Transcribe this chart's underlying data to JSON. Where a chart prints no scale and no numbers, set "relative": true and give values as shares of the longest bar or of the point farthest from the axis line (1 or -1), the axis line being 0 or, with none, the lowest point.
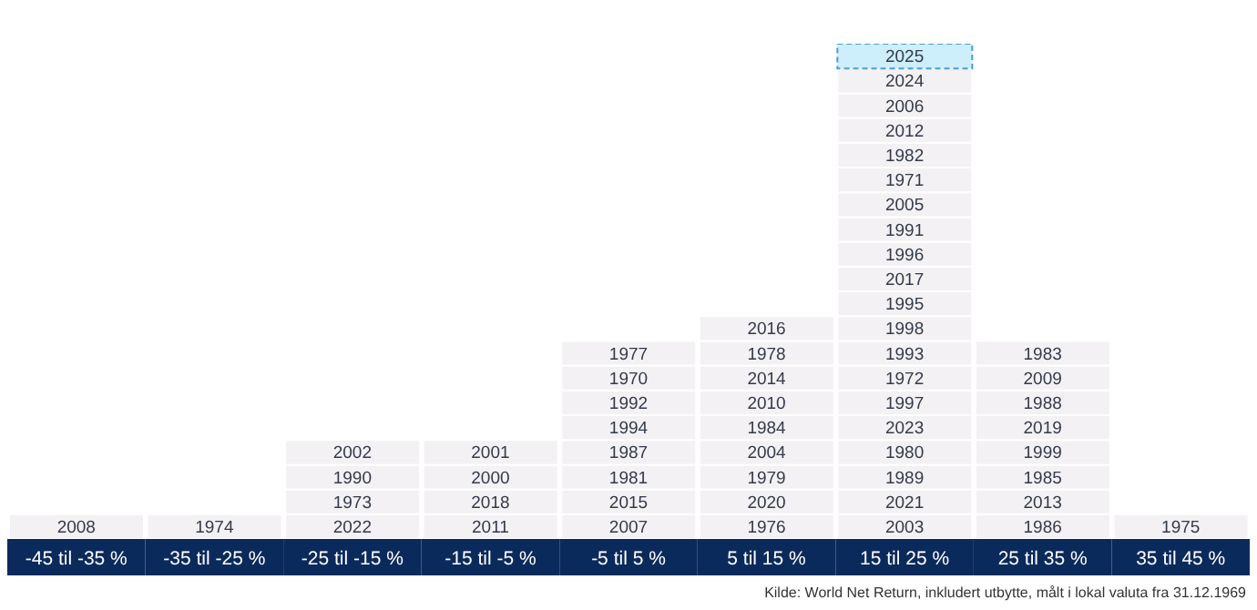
{
  "chart_data": {
    "type": "bar",
    "stacked": true,
    "relative": true,
    "categories": [
      "-45 til -35 %",
      "-35 til -25 %",
      "-25 til -15 %",
      "-15 til -5 %",
      "-5 til 5 %",
      "5 til 15 %",
      "15 til 25 %",
      "25 til 35 %",
      "35 til 45 %"
    ],
    "series": [
      {
        "color": "#f3f1f3",
        "values": [
          0.05,
          0.05,
          0.05,
          0.05,
          0.05,
          0.05,
          0.05,
          0.05,
          0.05
        ]
      },
      {
        "color": "#f3f1f3",
        "values": [
          null,
          null,
          0.05,
          0.05,
          0.05,
          0.05,
          0.05,
          0.05,
          null
        ]
      },
      {
        "color": "#f3f1f3",
        "values": [
          null,
          null,
          0.05,
          0.05,
          0.05,
          0.05,
          0.05,
          0.05,
          null
        ]
      },
      {
        "color": "#f3f1f3",
        "values": [
          null,
          null,
          0.05,
          0.05,
          0.05,
          0.05,
          0.05,
          0.05,
          null
        ]
      },
      {
        "color": "#f3f1f3",
        "values": [
          null,
          null,
          null,
          null,
          0.05,
          0.05,
          0.05,
          0.05,
          null
        ]
      },
      {
        "color": "#f3f1f3",
        "values": [
          null,
          null,
          null,
          null,
          0.05,
          0.05,
          0.05,
          0.05,
          null
        ]
      },
      {
        "color": "#f3f1f3",
        "values": [
          null,
          null,
          null,
          null,
          0.05,
          0.05,
          0.05,
          0.05,
          null
        ]
      },
      {
        "color": "#f3f1f3",
        "values": [
          null,
          null,
          null,
          null,
          0.05,
          0.05,
          0.05,
          0.05,
          null
        ]
      },
      {
        "color": "#f3f1f3",
        "values": [
          null,
          null,
          null,
          null,
          null,
          0.05,
          0.05,
          null,
          null
        ]
      },
      {
        "color": "#f3f1f3",
        "values": [
          null,
          null,
          null,
          null,
          null,
          null,
          0.05,
          null,
          null
        ]
      },
      {
        "color": "#f3f1f3",
        "values": [
          null,
          null,
          null,
          null,
          null,
          null,
          0.05,
          null,
          null
        ]
      },
      {
        "color": "#f3f1f3",
        "values": [
          null,
          null,
          null,
          null,
          null,
          null,
          0.05,
          null,
          null
        ]
      },
      {
        "color": "#f3f1f3",
        "values": [
          null,
          null,
          null,
          null,
          null,
          null,
          0.05,
          null,
          null
        ]
      },
      {
        "color": "#f3f1f3",
        "values": [
          null,
          null,
          null,
          null,
          null,
          null,
          0.05,
          null,
          null
        ]
      },
      {
        "color": "#f3f1f3",
        "values": [
          null,
          null,
          null,
          null,
          null,
          null,
          0.05,
          null,
          null
        ]
      },
      {
        "color": "#f3f1f3",
        "values": [
          null,
          null,
          null,
          null,
          null,
          null,
          0.05,
          null,
          null
        ]
      },
      {
        "color": "#f3f1f3",
        "values": [
          null,
          null,
          null,
          null,
          null,
          null,
          0.05,
          null,
          null
        ]
      },
      {
        "color": "#f3f1f3",
        "values": [
          null,
          null,
          null,
          null,
          null,
          null,
          0.05,
          null,
          null
        ]
      },
      {
        "color": "#f3f1f3",
        "values": [
          null,
          null,
          null,
          null,
          null,
          null,
          0.05,
          null,
          null
        ]
      },
      {
        "color": "#cdeefb",
        "line_style": "dashed",
        "values": [
          null,
          null,
          null,
          null,
          null,
          null,
          0.05,
          null,
          null
        ]
      }
    ],
    "annotations": [
      {
        "text": "2008",
        "x": "-45 til -35 %",
        "y": 0.05
      },
      {
        "text": "1974",
        "x": "-35 til -25 %",
        "y": 0.05
      },
      {
        "text": "2022",
        "x": "-25 til -15 %",
        "y": 0.05
      },
      {
        "text": "1973",
        "x": "-25 til -15 %",
        "y": 0.1
      },
      {
        "text": "1990",
        "x": "-25 til -15 %",
        "y": 0.15
      },
      {
        "text": "2002",
        "x": "-25 til -15 %",
        "y": 0.2
      },
      {
        "text": "2011",
        "x": "-15 til -5 %",
        "y": 0.05
      },
      {
        "text": "2018",
        "x": "-15 til -5 %",
        "y": 0.1
      },
      {
        "text": "2000",
        "x": "-15 til -5 %",
        "y": 0.15
      },
      {
        "text": "2001",
        "x": "-15 til -5 %",
        "y": 0.2
      },
      {
        "text": "2007",
        "x": "-5 til 5 %",
        "y": 0.05
      },
      {
        "text": "2015",
        "x": "-5 til 5 %",
        "y": 0.1
      },
      {
        "text": "1981",
        "x": "-5 til 5 %",
        "y": 0.15
      },
      {
        "text": "1987",
        "x": "-5 til 5 %",
        "y": 0.2
      },
      {
        "text": "1994",
        "x": "-5 til 5 %",
        "y": 0.25
      },
      {
        "text": "1992",
        "x": "-5 til 5 %",
        "y": 0.3
      },
      {
        "text": "1970",
        "x": "-5 til 5 %",
        "y": 0.35
      },
      {
        "text": "1977",
        "x": "-5 til 5 %",
        "y": 0.4
      },
      {
        "text": "1976",
        "x": "5 til 15 %",
        "y": 0.05
      },
      {
        "text": "2020",
        "x": "5 til 15 %",
        "y": 0.1
      },
      {
        "text": "1979",
        "x": "5 til 15 %",
        "y": 0.15
      },
      {
        "text": "2004",
        "x": "5 til 15 %",
        "y": 0.2
      },
      {
        "text": "1984",
        "x": "5 til 15 %",
        "y": 0.25
      },
      {
        "text": "2010",
        "x": "5 til 15 %",
        "y": 0.3
      },
      {
        "text": "2014",
        "x": "5 til 15 %",
        "y": 0.35
      },
      {
        "text": "1978",
        "x": "5 til 15 %",
        "y": 0.4
      },
      {
        "text": "2016",
        "x": "5 til 15 %",
        "y": 0.45
      },
      {
        "text": "2003",
        "x": "15 til 25 %",
        "y": 0.05
      },
      {
        "text": "2021",
        "x": "15 til 25 %",
        "y": 0.1
      },
      {
        "text": "1989",
        "x": "15 til 25 %",
        "y": 0.15
      },
      {
        "text": "1980",
        "x": "15 til 25 %",
        "y": 0.2
      },
      {
        "text": "2023",
        "x": "15 til 25 %",
        "y": 0.25
      },
      {
        "text": "1997",
        "x": "15 til 25 %",
        "y": 0.3
      },
      {
        "text": "1972",
        "x": "15 til 25 %",
        "y": 0.35
      },
      {
        "text": "1993",
        "x": "15 til 25 %",
        "y": 0.4
      },
      {
        "text": "1998",
        "x": "15 til 25 %",
        "y": 0.45
      },
      {
        "text": "1995",
        "x": "15 til 25 %",
        "y": 0.5
      },
      {
        "text": "2017",
        "x": "15 til 25 %",
        "y": 0.55
      },
      {
        "text": "1996",
        "x": "15 til 25 %",
        "y": 0.6
      },
      {
        "text": "1991",
        "x": "15 til 25 %",
        "y": 0.65
      },
      {
        "text": "2005",
        "x": "15 til 25 %",
        "y": 0.7
      },
      {
        "text": "1971",
        "x": "15 til 25 %",
        "y": 0.75
      },
      {
        "text": "1982",
        "x": "15 til 25 %",
        "y": 0.8
      },
      {
        "text": "2012",
        "x": "15 til 25 %",
        "y": 0.85
      },
      {
        "text": "2006",
        "x": "15 til 25 %",
        "y": 0.9
      },
      {
        "text": "2024",
        "x": "15 til 25 %",
        "y": 0.95
      },
      {
        "text": "2025",
        "x": "15 til 25 %",
        "y": 1
      },
      {
        "text": "1986",
        "x": "25 til 35 %",
        "y": 0.05
      },
      {
        "text": "2013",
        "x": "25 til 35 %",
        "y": 0.1
      },
      {
        "text": "1985",
        "x": "25 til 35 %",
        "y": 0.15
      },
      {
        "text": "1999",
        "x": "25 til 35 %",
        "y": 0.2
      },
      {
        "text": "2019",
        "x": "25 til 35 %",
        "y": 0.25
      },
      {
        "text": "1988",
        "x": "25 til 35 %",
        "y": 0.3
      },
      {
        "text": "2009",
        "x": "25 til 35 %",
        "y": 0.35
      },
      {
        "text": "1983",
        "x": "25 til 35 %",
        "y": 0.4
      },
      {
        "text": "1975",
        "x": "35 til 45 %",
        "y": 0.05
      },
      "Kilde: World Net Return, inkludert utbytte, målt i lokal valuta fra 31.12.1969"
    ]
  }
}
